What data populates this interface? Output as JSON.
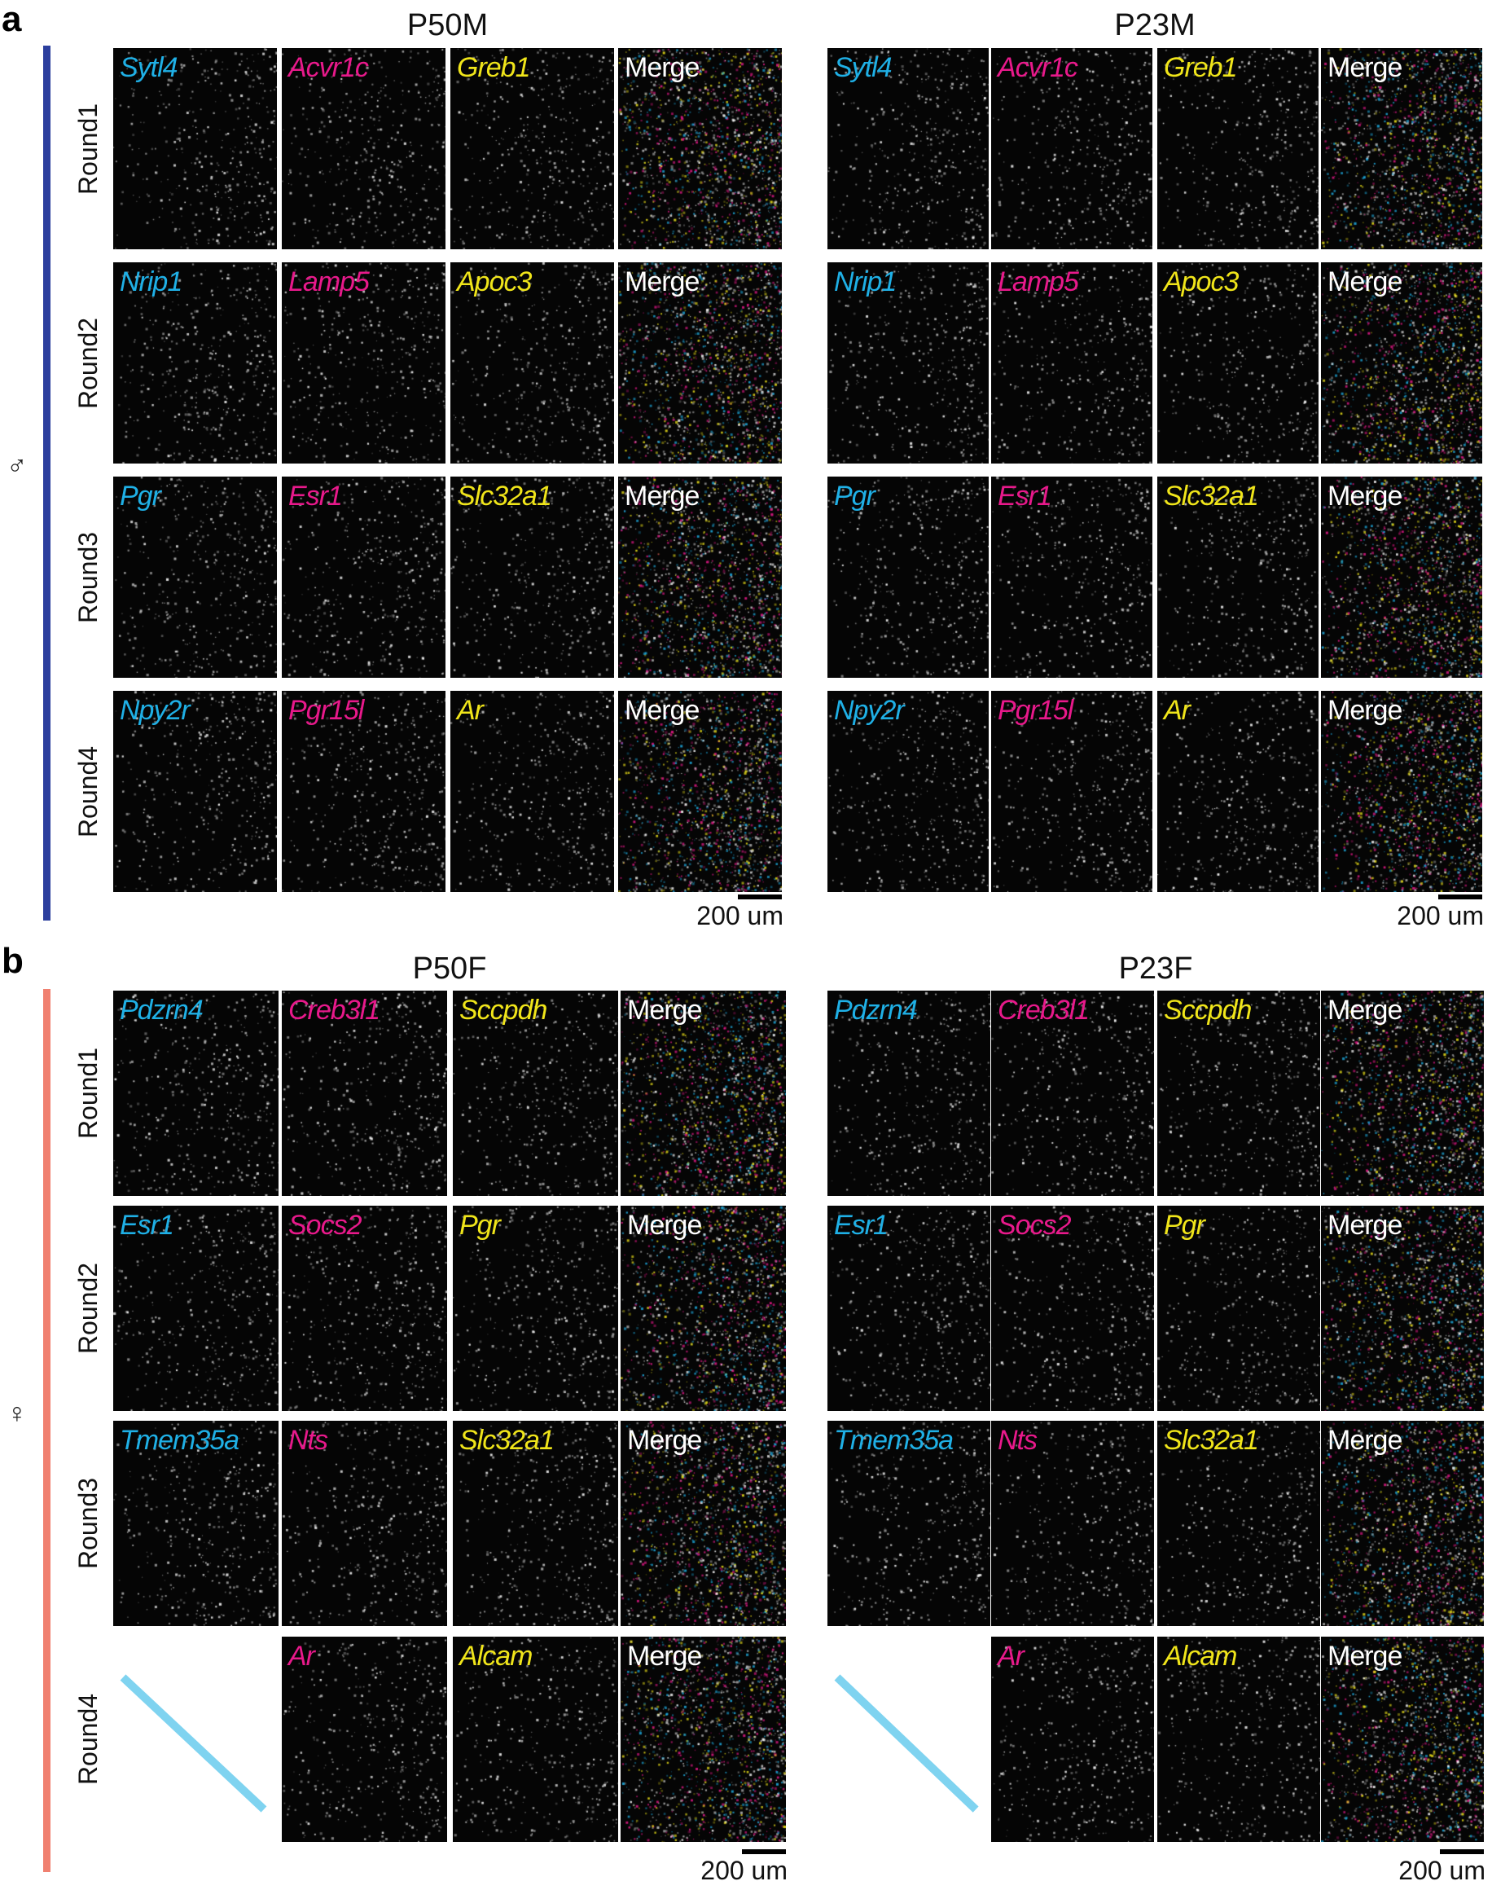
{
  "colors": {
    "cyan": "#1fb0e6",
    "magenta": "#e8198b",
    "yellow": "#f0e51a",
    "white": "#ffffff",
    "male_bar": "#2c3f9e",
    "female_bar": "#f08070",
    "slash": "#7fd3f0"
  },
  "sections": [
    {
      "letter": "a",
      "sex_symbol": "♂",
      "groups": [
        {
          "title": "P50M",
          "scale": "200 um",
          "rows": [
            {
              "round": "Round1",
              "panels": [
                "Sytl4",
                "Acvr1c",
                "Greb1",
                "Merge"
              ]
            },
            {
              "round": "Round2",
              "panels": [
                "Nrip1",
                "Lamp5",
                "Apoc3",
                "Merge"
              ]
            },
            {
              "round": "Round3",
              "panels": [
                "Pgr",
                "Esr1",
                "Slc32a1",
                "Merge"
              ]
            },
            {
              "round": "Round4",
              "panels": [
                "Npy2r",
                "Pgr15l",
                "Ar",
                "Merge"
              ]
            }
          ]
        },
        {
          "title": "P23M",
          "scale": "200 um",
          "rows": [
            {
              "round": "",
              "panels": [
                "Sytl4",
                "Acvr1c",
                "Greb1",
                "Merge"
              ]
            },
            {
              "round": "",
              "panels": [
                "Nrip1",
                "Lamp5",
                "Apoc3",
                "Merge"
              ]
            },
            {
              "round": "",
              "panels": [
                "Pgr",
                "Esr1",
                "Slc32a1",
                "Merge"
              ]
            },
            {
              "round": "",
              "panels": [
                "Npy2r",
                "Pgr15l",
                "Ar",
                "Merge"
              ]
            }
          ]
        }
      ]
    },
    {
      "letter": "b",
      "sex_symbol": "♀",
      "groups": [
        {
          "title": "P50F",
          "scale": "200 um",
          "rows": [
            {
              "round": "Round1",
              "panels": [
                "Pdzrn4",
                "Creb3l1",
                "Sccpdh",
                "Merge"
              ]
            },
            {
              "round": "Round2",
              "panels": [
                "Esr1",
                "Socs2",
                "Pgr",
                "Merge"
              ]
            },
            {
              "round": "Round3",
              "panels": [
                "Tmem35a",
                "Nts",
                "Slc32a1",
                "Merge"
              ]
            },
            {
              "round": "Round4",
              "panels": [
                null,
                "Ar",
                "Alcam",
                "Merge"
              ]
            }
          ]
        },
        {
          "title": "P23F",
          "scale": "200 um",
          "rows": [
            {
              "round": "",
              "panels": [
                "Pdzrn4",
                "Creb3l1",
                "Sccpdh",
                "Merge"
              ]
            },
            {
              "round": "",
              "panels": [
                "Esr1",
                "Socs2",
                "Pgr",
                "Merge"
              ]
            },
            {
              "round": "",
              "panels": [
                "Tmem35a",
                "Nts",
                "Slc32a1",
                "Merge"
              ]
            },
            {
              "round": "",
              "panels": [
                null,
                "Ar",
                "Alcam",
                "Merge"
              ]
            }
          ]
        }
      ]
    }
  ]
}
